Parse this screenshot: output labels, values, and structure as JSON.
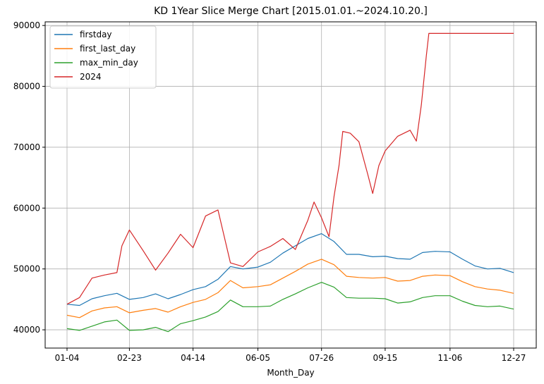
{
  "chart_data": {
    "type": "line",
    "title": "KD 1Year Slice Merge Chart [2015.01.01.~2024.10.20.]",
    "xlabel": "Month_Day",
    "ylabel": "",
    "x_ticks": [
      "01-04",
      "02-23",
      "04-14",
      "06-05",
      "07-26",
      "09-15",
      "11-06",
      "12-27"
    ],
    "y_ticks": [
      "40000",
      "50000",
      "60000",
      "70000",
      "80000",
      "90000"
    ],
    "ylim": [
      37000,
      90600
    ],
    "grid": true,
    "legend_position": "top-left",
    "colors": {
      "firstday": "#1f77b4",
      "first_last_day": "#ff7f0e",
      "max_min_day": "#2ca02c",
      "2024": "#d62728"
    },
    "series": [
      {
        "name": "firstday",
        "points": [
          [
            "01-04",
            44200
          ],
          [
            "01-14",
            44000
          ],
          [
            "01-24",
            45100
          ],
          [
            "02-03",
            45600
          ],
          [
            "02-13",
            46000
          ],
          [
            "02-23",
            45000
          ],
          [
            "03-05",
            45300
          ],
          [
            "03-15",
            45900
          ],
          [
            "03-25",
            45100
          ],
          [
            "04-04",
            45800
          ],
          [
            "04-14",
            46600
          ],
          [
            "04-24",
            47100
          ],
          [
            "05-04",
            48300
          ],
          [
            "05-14",
            50400
          ],
          [
            "05-24",
            50000
          ],
          [
            "06-05",
            50300
          ],
          [
            "06-15",
            51100
          ],
          [
            "06-25",
            52600
          ],
          [
            "07-05",
            53800
          ],
          [
            "07-15",
            55000
          ],
          [
            "07-26",
            55800
          ],
          [
            "08-05",
            54500
          ],
          [
            "08-15",
            52400
          ],
          [
            "08-25",
            52400
          ],
          [
            "09-05",
            52000
          ],
          [
            "09-15",
            52100
          ],
          [
            "09-25",
            51700
          ],
          [
            "10-05",
            51600
          ],
          [
            "10-15",
            52700
          ],
          [
            "10-25",
            52900
          ],
          [
            "11-06",
            52800
          ],
          [
            "11-16",
            51600
          ],
          [
            "11-26",
            50500
          ],
          [
            "12-06",
            50000
          ],
          [
            "12-16",
            50100
          ],
          [
            "12-27",
            49400
          ]
        ]
      },
      {
        "name": "first_last_day",
        "points": [
          [
            "01-04",
            42400
          ],
          [
            "01-14",
            42000
          ],
          [
            "01-24",
            43100
          ],
          [
            "02-03",
            43600
          ],
          [
            "02-13",
            43800
          ],
          [
            "02-23",
            42800
          ],
          [
            "03-05",
            43200
          ],
          [
            "03-15",
            43500
          ],
          [
            "03-25",
            42900
          ],
          [
            "04-04",
            43800
          ],
          [
            "04-14",
            44500
          ],
          [
            "04-24",
            45000
          ],
          [
            "05-04",
            46100
          ],
          [
            "05-14",
            48100
          ],
          [
            "05-24",
            46900
          ],
          [
            "06-05",
            47100
          ],
          [
            "06-15",
            47400
          ],
          [
            "06-25",
            48500
          ],
          [
            "07-05",
            49600
          ],
          [
            "07-15",
            50800
          ],
          [
            "07-26",
            51600
          ],
          [
            "08-05",
            50700
          ],
          [
            "08-15",
            48800
          ],
          [
            "08-25",
            48600
          ],
          [
            "09-05",
            48500
          ],
          [
            "09-15",
            48600
          ],
          [
            "09-25",
            48000
          ],
          [
            "10-05",
            48100
          ],
          [
            "10-15",
            48800
          ],
          [
            "10-25",
            49000
          ],
          [
            "11-06",
            48900
          ],
          [
            "11-16",
            47900
          ],
          [
            "11-26",
            47100
          ],
          [
            "12-06",
            46700
          ],
          [
            "12-16",
            46500
          ],
          [
            "12-27",
            46000
          ]
        ]
      },
      {
        "name": "max_min_day",
        "points": [
          [
            "01-04",
            40200
          ],
          [
            "01-14",
            39900
          ],
          [
            "01-24",
            40600
          ],
          [
            "02-03",
            41300
          ],
          [
            "02-13",
            41600
          ],
          [
            "02-23",
            39900
          ],
          [
            "03-05",
            40000
          ],
          [
            "03-15",
            40400
          ],
          [
            "03-25",
            39700
          ],
          [
            "04-04",
            41000
          ],
          [
            "04-14",
            41500
          ],
          [
            "04-24",
            42100
          ],
          [
            "05-04",
            43000
          ],
          [
            "05-14",
            44900
          ],
          [
            "05-24",
            43800
          ],
          [
            "06-05",
            43800
          ],
          [
            "06-15",
            43900
          ],
          [
            "06-25",
            45000
          ],
          [
            "07-05",
            45900
          ],
          [
            "07-15",
            46900
          ],
          [
            "07-26",
            47800
          ],
          [
            "08-05",
            47000
          ],
          [
            "08-15",
            45300
          ],
          [
            "08-25",
            45200
          ],
          [
            "09-05",
            45200
          ],
          [
            "09-15",
            45100
          ],
          [
            "09-25",
            44400
          ],
          [
            "10-05",
            44600
          ],
          [
            "10-15",
            45300
          ],
          [
            "10-25",
            45600
          ],
          [
            "11-06",
            45600
          ],
          [
            "11-16",
            44700
          ],
          [
            "11-26",
            44000
          ],
          [
            "12-06",
            43800
          ],
          [
            "12-16",
            43900
          ],
          [
            "12-27",
            43400
          ]
        ]
      },
      {
        "name": "2024",
        "points": [
          [
            "01-04",
            44200
          ],
          [
            "01-14",
            45300
          ],
          [
            "01-24",
            48500
          ],
          [
            "02-03",
            49000
          ],
          [
            "02-13",
            49400
          ],
          [
            "02-17",
            53800
          ],
          [
            "02-23",
            56400
          ],
          [
            "03-05",
            53000
          ],
          [
            "03-15",
            49800
          ],
          [
            "03-25",
            52600
          ],
          [
            "04-04",
            55700
          ],
          [
            "04-14",
            53500
          ],
          [
            "04-24",
            58700
          ],
          [
            "05-04",
            59700
          ],
          [
            "05-14",
            51000
          ],
          [
            "05-24",
            50400
          ],
          [
            "06-05",
            52800
          ],
          [
            "06-15",
            53700
          ],
          [
            "06-25",
            55000
          ],
          [
            "07-05",
            53200
          ],
          [
            "07-15",
            58000
          ],
          [
            "07-20",
            61000
          ],
          [
            "07-26",
            58400
          ],
          [
            "08-01",
            55300
          ],
          [
            "08-05",
            61900
          ],
          [
            "08-09",
            67000
          ],
          [
            "08-12",
            72600
          ],
          [
            "08-18",
            72300
          ],
          [
            "08-25",
            70900
          ],
          [
            "09-01",
            65600
          ],
          [
            "09-05",
            62400
          ],
          [
            "09-10",
            67000
          ],
          [
            "09-15",
            69400
          ],
          [
            "09-25",
            71800
          ],
          [
            "10-05",
            72800
          ],
          [
            "10-10",
            71000
          ],
          [
            "10-14",
            77000
          ],
          [
            "10-18",
            85000
          ],
          [
            "10-20",
            88700
          ],
          [
            "10-30",
            88700
          ],
          [
            "11-06",
            88700
          ],
          [
            "11-16",
            88700
          ],
          [
            "11-26",
            88700
          ],
          [
            "12-06",
            88700
          ],
          [
            "12-16",
            88700
          ],
          [
            "12-27",
            88700
          ]
        ]
      }
    ]
  }
}
